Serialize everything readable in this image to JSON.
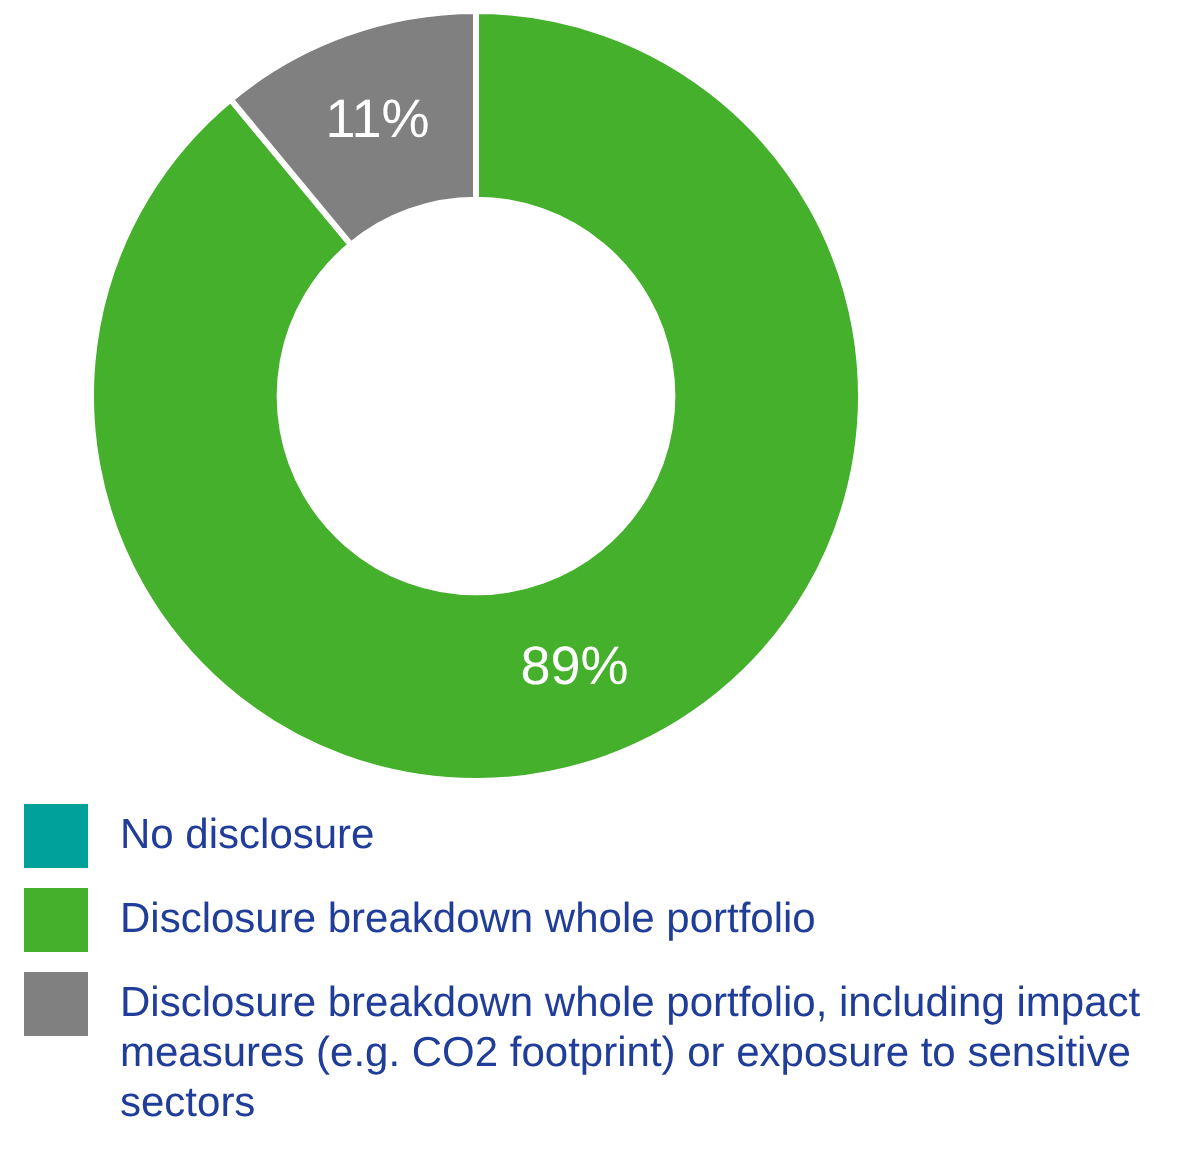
{
  "chart_data": {
    "type": "donut",
    "categories": [
      "No disclosure",
      "Disclosure breakdown whole portfolio",
      "Disclosure breakdown whole portfolio, including impact measures (e.g. CO2 footprint) or exposure to sensitive sectors"
    ],
    "values": [
      0,
      89,
      11
    ],
    "colors": [
      "#00a19a",
      "#44b02c",
      "#808080"
    ],
    "value_labels": [
      null,
      "89%",
      "11%"
    ],
    "legend": "bottom"
  }
}
